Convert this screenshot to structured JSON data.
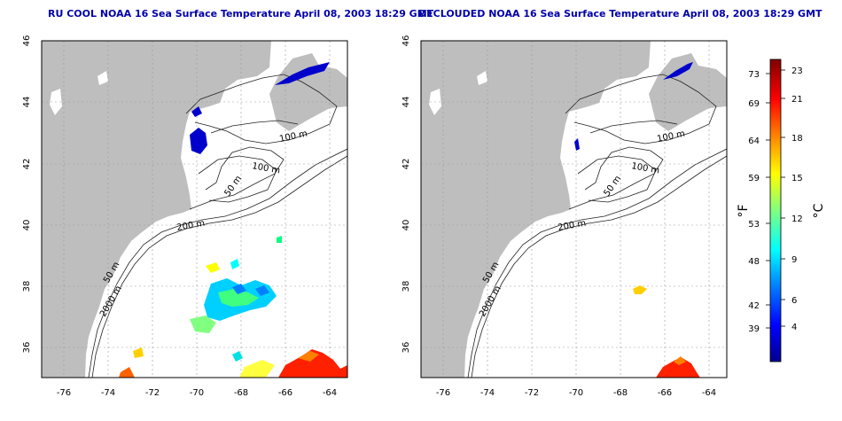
{
  "panels": [
    {
      "title": "RU COOL NOAA 16 Sea Surface Temperature April 08, 2003 18:29 GMT",
      "contour_labels": [
        "100 m",
        "100 m",
        "50 m",
        "200 m",
        "50 m",
        "2000 m"
      ]
    },
    {
      "title": "DECLOUDED NOAA 16 Sea Surface Temperature April 08, 2003 18:29 GMT",
      "contour_labels": [
        "100 m",
        "100 m",
        "50 m",
        "200 m",
        "50 m",
        "2000 m"
      ]
    }
  ],
  "axes": {
    "x_ticks": [
      "-76",
      "-74",
      "-72",
      "-70",
      "-68",
      "-66",
      "-64"
    ],
    "y_ticks": [
      "46",
      "44",
      "42",
      "40",
      "38",
      "36"
    ],
    "x_range": [
      -77.3,
      -63.0
    ],
    "y_range": [
      35.0,
      46.0
    ]
  },
  "colorbar": {
    "fahrenheit_label": "°F",
    "celsius_label": "°C",
    "fahrenheit_ticks": [
      "73",
      "69",
      "64",
      "59",
      "53",
      "48",
      "42",
      "39"
    ],
    "celsius_ticks": [
      "23",
      "21",
      "18",
      "15",
      "12",
      "9",
      "6",
      "4"
    ],
    "colors": [
      "#00008f",
      "#0000ff",
      "#0080ff",
      "#00ffff",
      "#80ff80",
      "#ffff00",
      "#ff8000",
      "#ff0000",
      "#800000"
    ]
  },
  "colors": {
    "land": "#bebebe",
    "contour": "#222222",
    "grid": "#9a9a9a",
    "title": "#0000aa"
  }
}
